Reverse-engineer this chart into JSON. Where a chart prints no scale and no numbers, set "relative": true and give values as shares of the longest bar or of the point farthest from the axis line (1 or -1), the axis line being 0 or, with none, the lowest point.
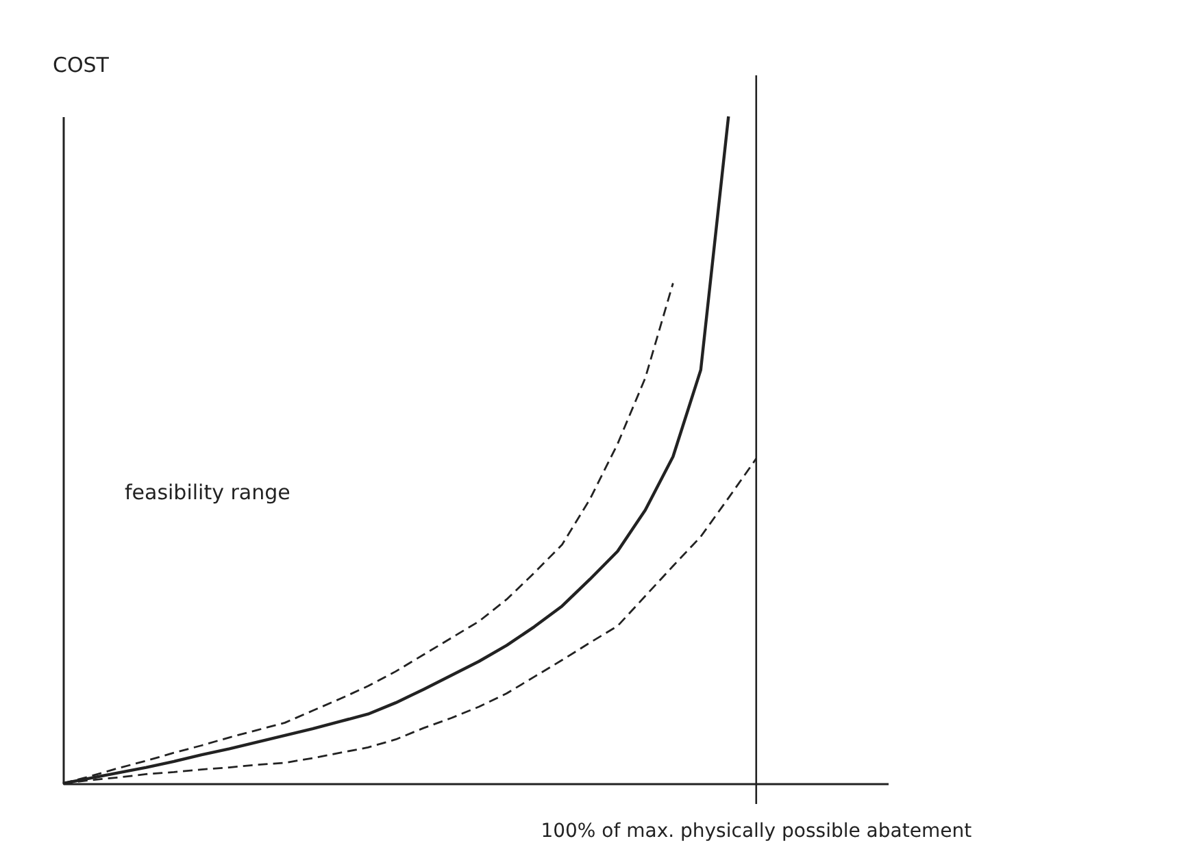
{
  "chart_data": {
    "type": "line",
    "relative": true,
    "ylabel": "COST",
    "categories": [
      null,
      null,
      null,
      null,
      null,
      null,
      null,
      null,
      null,
      null,
      null,
      null,
      null,
      null,
      null,
      null,
      null,
      null,
      null,
      null,
      null,
      null,
      null,
      null,
      null,
      null
    ],
    "series": [
      {
        "color": "#222222",
        "line_style": "solid",
        "values": [
          0,
          0.008,
          0.016,
          0.024,
          0.033,
          0.043,
          0.052,
          0.062,
          0.072,
          0.082,
          0.093,
          0.104,
          0.121,
          0.141,
          0.162,
          0.183,
          0.207,
          0.235,
          0.266,
          0.306,
          0.348,
          0.41,
          0.49,
          0.62,
          1,
          null
        ]
      },
      {
        "color": "#222222",
        "line_style": "dashed",
        "values": [
          0,
          0.011,
          0.023,
          0.034,
          0.046,
          0.057,
          0.069,
          0.08,
          0.091,
          0.109,
          0.127,
          0.146,
          0.168,
          0.193,
          0.218,
          0.243,
          0.276,
          0.316,
          0.358,
          0.426,
          0.509,
          0.608,
          0.75,
          null,
          null,
          null
        ]
      },
      {
        "color": "#222222",
        "line_style": "dashed",
        "values": [
          0,
          0.005,
          0.009,
          0.014,
          0.017,
          0.021,
          0.024,
          0.028,
          0.031,
          0.038,
          0.046,
          0.054,
          0.066,
          0.083,
          0.098,
          0.115,
          0.135,
          0.16,
          0.185,
          0.211,
          0.236,
          0.281,
          0.326,
          0.37,
          0.428,
          0.487
        ]
      }
    ],
    "ref_lines": [
      {
        "axis": "x",
        "label": "100% of max. physically possible abatement",
        "color": "#222222",
        "line_style": "solid"
      }
    ],
    "annotations": [
      "feasibility range"
    ]
  }
}
